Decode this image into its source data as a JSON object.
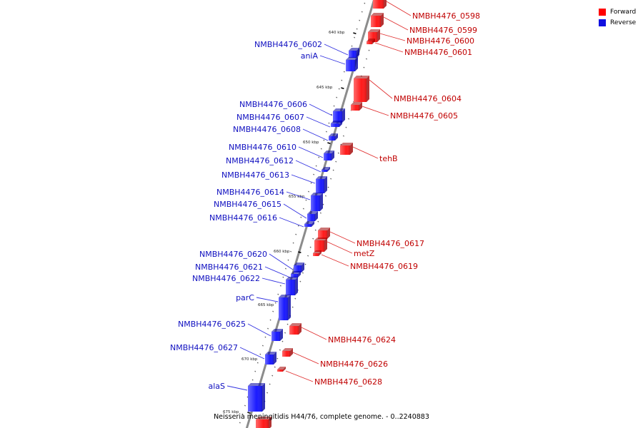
{
  "legend": {
    "forward": {
      "label": "Forward",
      "color": "#ff0000"
    },
    "reverse": {
      "label": "Reverse",
      "color": "#1010e0"
    }
  },
  "caption": "Neisseria meningitidis H44/76, complete genome. - 0..2240883",
  "ticks": [
    "640 kbp",
    "645 kbp",
    "650 kbp",
    "655 kbp",
    "660 kbp",
    "665 kbp",
    "670 kbp",
    "675 kbp"
  ],
  "genes": {
    "forward": [
      "NMBH4476_0598",
      "NMBH4476_0599",
      "NMBH4476_0600",
      "NMBH4476_0601",
      "NMBH4476_0604",
      "NMBH4476_0605",
      "tehB",
      "NMBH4476_0617",
      "metZ",
      "NMBH4476_0619",
      "NMBH4476_0624",
      "NMBH4476_0626",
      "NMBH4476_0628"
    ],
    "reverse": [
      "NMBH4476_0602",
      "aniA",
      "NMBH4476_0606",
      "NMBH4476_0607",
      "NMBH4476_0608",
      "NMBH4476_0610",
      "NMBH4476_0612",
      "NMBH4476_0613",
      "NMBH4476_0614",
      "NMBH4476_0615",
      "NMBH4476_0616",
      "NMBH4476_0620",
      "NMBH4476_0621",
      "NMBH4476_0622",
      "parC",
      "NMBH4476_0625",
      "NMBH4476_0627",
      "alaS"
    ]
  }
}
